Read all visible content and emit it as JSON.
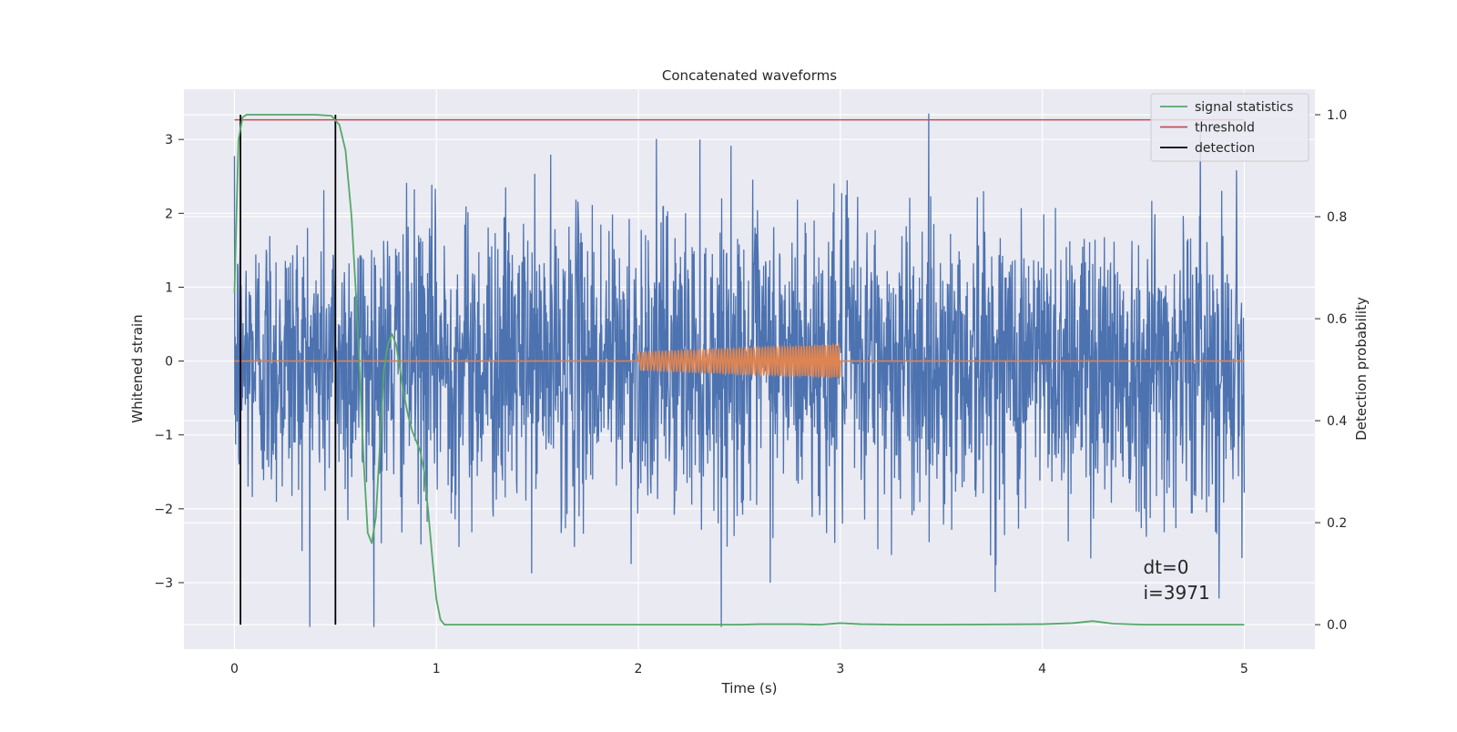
{
  "chart_data": {
    "type": "line",
    "title": "Concatenated waveforms",
    "xlabel": "Time (s)",
    "ylabel_left": "Whitened strain",
    "ylabel_right": "Detection probability",
    "xlim": [
      -0.25,
      5.35
    ],
    "ylim_left": [
      -3.9,
      3.68
    ],
    "ylim_right": [
      -0.048,
      1.05
    ],
    "xticks": [
      0,
      1,
      2,
      3,
      4,
      5
    ],
    "xtick_labels": [
      "0",
      "1",
      "2",
      "3",
      "4",
      "5"
    ],
    "yticks_left": [
      3,
      2,
      1,
      0,
      -1,
      -2,
      -3
    ],
    "ytick_labels_left": [
      "3",
      "2",
      "1",
      "0",
      "−1",
      "−2",
      "−3"
    ],
    "yticks_right": [
      1.0,
      0.8,
      0.6,
      0.4,
      0.2,
      0.0
    ],
    "ytick_labels_right": [
      "1.0",
      "0.8",
      "0.6",
      "0.4",
      "0.2",
      "0.0"
    ],
    "grid": true,
    "legend_position": "top-right",
    "legend": [
      {
        "label": "signal statistics",
        "color": "#55a868"
      },
      {
        "label": "threshold",
        "color": "#c44e52"
      },
      {
        "label": "detection",
        "color": "#000000"
      }
    ],
    "series": [
      {
        "name": "strain",
        "axis": "left",
        "color": "#4c72b0",
        "sample_rate_hz": 2048,
        "x_range": [
          0,
          5
        ],
        "envelope_amplitude": 3.3,
        "note_values": "noise trace; values drawn as random samples within roughly ±3.6"
      },
      {
        "name": "injected waveform",
        "axis": "left",
        "color": "#dd8452",
        "x": [
          2.0,
          3.0
        ],
        "amplitude_start": 0.12,
        "amplitude_end": 0.22,
        "cycles": 60
      },
      {
        "name": "signal statistics",
        "axis": "right",
        "color": "#55a868",
        "x": [
          0.0,
          0.02,
          0.04,
          0.06,
          0.1,
          0.2,
          0.3,
          0.4,
          0.48,
          0.52,
          0.55,
          0.58,
          0.6,
          0.62,
          0.64,
          0.66,
          0.68,
          0.7,
          0.72,
          0.74,
          0.76,
          0.78,
          0.8,
          0.82,
          0.84,
          0.86,
          0.88,
          0.9,
          0.92,
          0.94,
          0.96,
          0.98,
          1.0,
          1.02,
          1.04,
          1.06,
          1.1,
          1.2,
          1.5,
          2.0,
          2.5,
          2.6,
          2.8,
          2.9,
          3.0,
          3.1,
          3.3,
          3.5,
          4.0,
          4.15,
          4.25,
          4.35,
          4.5,
          5.0
        ],
        "y": [
          0.65,
          0.95,
          0.995,
          1.0,
          1.0,
          1.0,
          1.0,
          1.0,
          0.998,
          0.98,
          0.93,
          0.8,
          0.66,
          0.5,
          0.32,
          0.18,
          0.16,
          0.21,
          0.35,
          0.5,
          0.55,
          0.57,
          0.55,
          0.5,
          0.45,
          0.41,
          0.38,
          0.36,
          0.34,
          0.3,
          0.22,
          0.13,
          0.05,
          0.01,
          0.0,
          0.0,
          0.0,
          0.0,
          0.0,
          0.0,
          0.0,
          0.001,
          0.001,
          0.0,
          0.003,
          0.001,
          0.0,
          0.0,
          0.001,
          0.003,
          0.007,
          0.002,
          0.0,
          0.0
        ]
      },
      {
        "name": "threshold",
        "axis": "right",
        "color": "#c44e52",
        "x": [
          0.0,
          5.0
        ],
        "y": [
          0.99,
          0.99
        ]
      }
    ],
    "detections": {
      "color": "#000000",
      "x": [
        0.03,
        0.5
      ],
      "y_range_right": [
        0.0,
        1.0
      ]
    },
    "annotation": {
      "lines": [
        "dt=0",
        "i=3971"
      ],
      "x": 4.5
    }
  }
}
